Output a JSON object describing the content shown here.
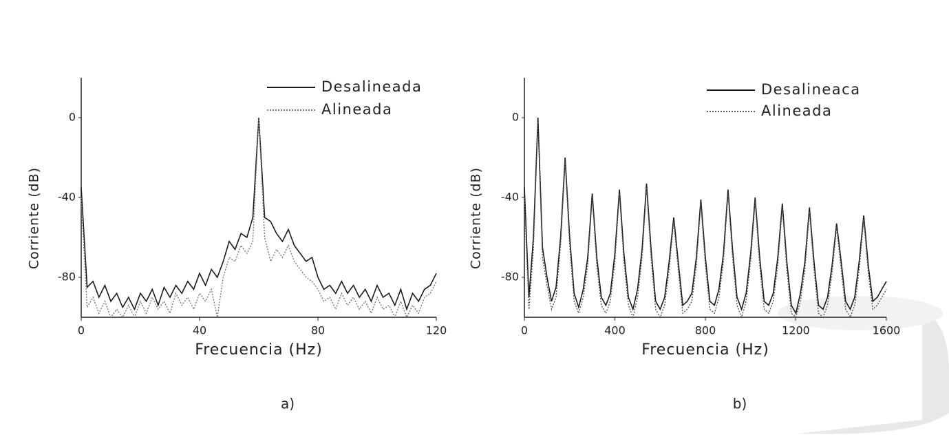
{
  "chart_data": [
    {
      "type": "line",
      "caption": "a)",
      "xlabel": "Frecuencia (Hz)",
      "ylabel": "Corriente (dB)",
      "xlim": [
        0,
        120
      ],
      "ylim": [
        -100,
        20
      ],
      "xticks": [
        0,
        40,
        80,
        120
      ],
      "yticks": [
        -80,
        -40,
        0
      ],
      "legend": "upper right",
      "x": [
        0,
        2,
        4,
        6,
        8,
        10,
        12,
        14,
        16,
        18,
        20,
        22,
        24,
        26,
        28,
        30,
        32,
        34,
        36,
        38,
        40,
        42,
        44,
        46,
        48,
        50,
        52,
        54,
        56,
        58,
        60,
        62,
        64,
        66,
        68,
        70,
        72,
        74,
        76,
        78,
        80,
        82,
        84,
        86,
        88,
        90,
        92,
        94,
        96,
        98,
        100,
        102,
        104,
        106,
        108,
        110,
        112,
        114,
        116,
        118,
        120
      ],
      "series": [
        {
          "name": "Desalineada",
          "color": "#1a1a1a",
          "style": "solid",
          "values": [
            -35,
            -85,
            -82,
            -90,
            -84,
            -92,
            -88,
            -95,
            -90,
            -96,
            -88,
            -92,
            -86,
            -94,
            -85,
            -90,
            -84,
            -88,
            -82,
            -86,
            -78,
            -84,
            -76,
            -80,
            -72,
            -62,
            -66,
            -58,
            -60,
            -50,
            0,
            -50,
            -52,
            -58,
            -62,
            -56,
            -64,
            -68,
            -72,
            -70,
            -80,
            -86,
            -84,
            -88,
            -82,
            -88,
            -84,
            -90,
            -86,
            -92,
            -84,
            -90,
            -88,
            -94,
            -86,
            -96,
            -88,
            -92,
            -86,
            -84,
            -78
          ]
        },
        {
          "name": "Alineada",
          "color": "#777777",
          "style": "dotted",
          "values": [
            -40,
            -95,
            -90,
            -98,
            -92,
            -100,
            -96,
            -100,
            -94,
            -100,
            -92,
            -98,
            -90,
            -96,
            -92,
            -98,
            -88,
            -94,
            -90,
            -96,
            -88,
            -92,
            -86,
            -100,
            -80,
            -70,
            -72,
            -64,
            -68,
            -62,
            0,
            -60,
            -72,
            -66,
            -70,
            -64,
            -72,
            -76,
            -80,
            -82,
            -86,
            -92,
            -90,
            -96,
            -88,
            -94,
            -90,
            -96,
            -92,
            -98,
            -90,
            -96,
            -94,
            -100,
            -92,
            -100,
            -94,
            -98,
            -90,
            -88,
            -82
          ]
        }
      ]
    },
    {
      "type": "line",
      "caption": "b)",
      "xlabel": "Frecuencia (Hz)",
      "ylabel": "Corriente (dB)",
      "xlim": [
        0,
        1600
      ],
      "ylim": [
        -100,
        20
      ],
      "xticks": [
        0,
        400,
        800,
        1200,
        1600
      ],
      "yticks": [
        -80,
        -40,
        0
      ],
      "legend": "upper right",
      "x": [
        0,
        20,
        40,
        60,
        80,
        100,
        120,
        140,
        160,
        180,
        200,
        220,
        240,
        260,
        280,
        300,
        320,
        340,
        360,
        380,
        400,
        420,
        440,
        460,
        480,
        500,
        520,
        540,
        560,
        580,
        600,
        620,
        640,
        660,
        680,
        700,
        720,
        740,
        760,
        780,
        800,
        820,
        840,
        860,
        880,
        900,
        920,
        940,
        960,
        980,
        1000,
        1020,
        1040,
        1060,
        1080,
        1100,
        1120,
        1140,
        1160,
        1180,
        1200,
        1220,
        1240,
        1260,
        1280,
        1300,
        1320,
        1340,
        1360,
        1380,
        1400,
        1420,
        1440,
        1460,
        1480,
        1500,
        1520,
        1540,
        1560,
        1580,
        1600
      ],
      "series": [
        {
          "name": "Desalineaca",
          "color": "#1a1a1a",
          "style": "solid",
          "values": [
            -35,
            -90,
            -60,
            0,
            -65,
            -80,
            -92,
            -85,
            -60,
            -20,
            -60,
            -88,
            -95,
            -86,
            -70,
            -38,
            -70,
            -90,
            -94,
            -88,
            -68,
            -36,
            -68,
            -90,
            -96,
            -86,
            -66,
            -33,
            -66,
            -92,
            -96,
            -90,
            -72,
            -50,
            -72,
            -94,
            -92,
            -88,
            -70,
            -41,
            -70,
            -92,
            -94,
            -86,
            -68,
            -36,
            -66,
            -90,
            -96,
            -88,
            -68,
            -40,
            -70,
            -92,
            -94,
            -88,
            -70,
            -43,
            -72,
            -94,
            -98,
            -88,
            -72,
            -45,
            -72,
            -94,
            -96,
            -90,
            -74,
            -53,
            -72,
            -92,
            -96,
            -90,
            -72,
            -49,
            -74,
            -92,
            -90,
            -86,
            -82
          ]
        },
        {
          "name": "Alineada",
          "color": "#555555",
          "style": "dotted",
          "values": [
            -40,
            -96,
            -66,
            -2,
            -70,
            -84,
            -96,
            -90,
            -64,
            -22,
            -64,
            -92,
            -98,
            -90,
            -74,
            -40,
            -74,
            -94,
            -98,
            -92,
            -72,
            -38,
            -72,
            -94,
            -100,
            -90,
            -70,
            -35,
            -70,
            -96,
            -100,
            -94,
            -76,
            -52,
            -76,
            -98,
            -96,
            -92,
            -74,
            -43,
            -74,
            -96,
            -98,
            -90,
            -72,
            -38,
            -70,
            -94,
            -100,
            -92,
            -72,
            -42,
            -74,
            -96,
            -98,
            -92,
            -74,
            -45,
            -76,
            -98,
            -100,
            -92,
            -76,
            -47,
            -76,
            -98,
            -100,
            -94,
            -78,
            -55,
            -76,
            -96,
            -100,
            -94,
            -76,
            -51,
            -78,
            -96,
            -94,
            -90,
            -86
          ]
        }
      ]
    }
  ]
}
